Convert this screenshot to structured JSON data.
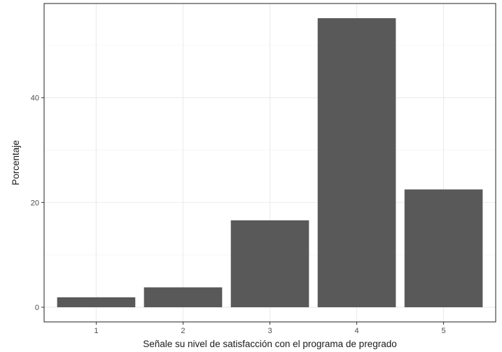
{
  "chart_data": {
    "type": "bar",
    "categories": [
      "1",
      "2",
      "3",
      "4",
      "5"
    ],
    "values": [
      1.9,
      3.8,
      16.6,
      55.2,
      22.5
    ],
    "xlabel": "Señale su nivel de satisfacción con el programa de pregrado",
    "ylabel": "Porcentaje",
    "ylim": [
      -2.8,
      58
    ],
    "yticks": [
      0,
      20,
      40
    ],
    "ytick_labels": [
      "0",
      "20",
      "40"
    ],
    "grid": true,
    "legend": "none",
    "colors": {
      "bar": "#595959",
      "panel_border": "#333333",
      "grid_major": "#ebebeb",
      "grid_minor": "#f5f5f5",
      "tick_text": "#4d4d4d",
      "title_text": "#1a1a1a"
    }
  }
}
